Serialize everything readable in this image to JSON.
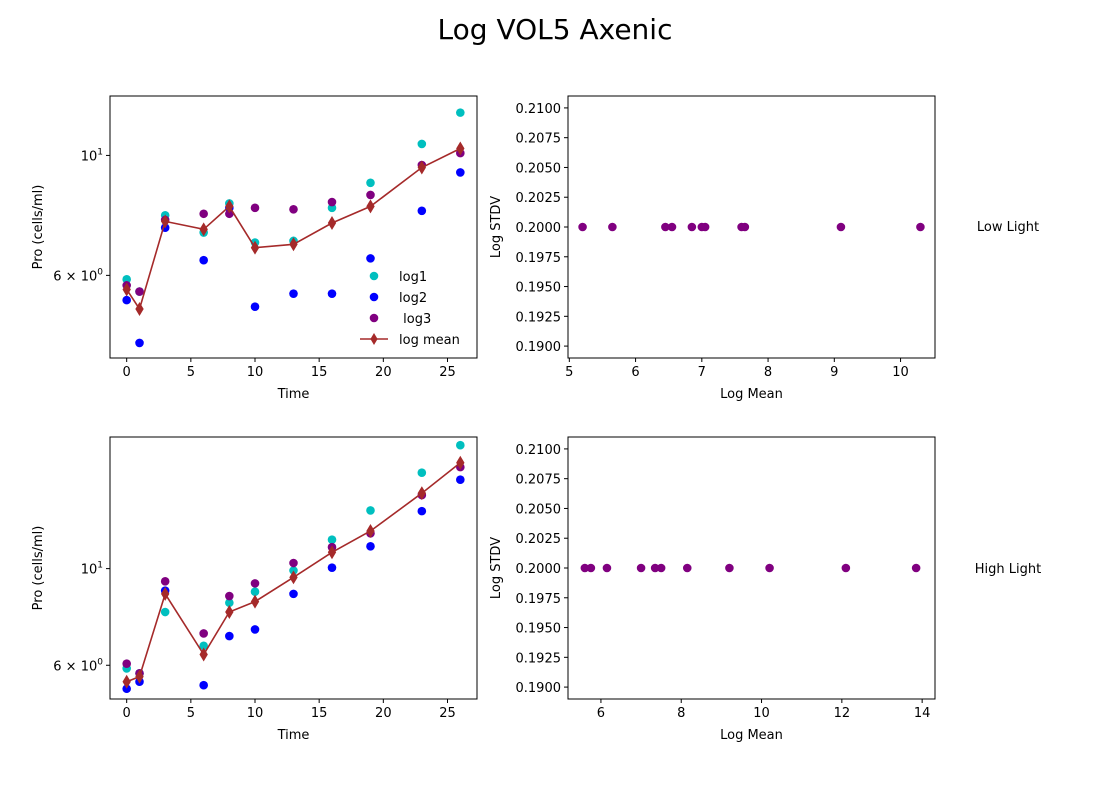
{
  "title": "Log VOL5 Axenic",
  "colors": {
    "log1": "#00bfbf",
    "log2": "#0000ff",
    "log3": "#800080",
    "mean": "#a52a2a"
  },
  "chart_data": [
    {
      "type": "scatter",
      "xlabel": "Time",
      "ylabel": "Pro (cells/ml)",
      "yscale": "log",
      "xlim": [
        -1.3,
        27.3
      ],
      "ylim": [
        4.22,
        12.88
      ],
      "xticks": [
        0,
        5,
        10,
        15,
        20,
        25
      ],
      "yticks": [
        {
          "value": 6,
          "label": "6 × 10^0",
          "base": "6 × 10",
          "exp": "0"
        },
        {
          "value": 10,
          "label": "10^1",
          "base": "10",
          "exp": "1"
        }
      ],
      "legend": {
        "placement": "lower-right",
        "entries": [
          "log1",
          "log2",
          " log3",
          "log mean"
        ]
      },
      "x": [
        0,
        1,
        3,
        6,
        8,
        10,
        13,
        16,
        19,
        23,
        26
      ],
      "series": [
        {
          "name": "log1",
          "marker": "circle",
          "color": "#00bfbf",
          "values": [
            5.9,
            5.6,
            7.75,
            7.2,
            8.15,
            6.9,
            6.95,
            8.0,
            8.9,
            10.5,
            12.0
          ]
        },
        {
          "name": "log2",
          "marker": "circle",
          "color": "#0000ff",
          "values": [
            5.4,
            4.5,
            7.35,
            6.4,
            8.0,
            5.25,
            5.55,
            5.55,
            6.45,
            7.9,
            9.3
          ]
        },
        {
          "name": " log3",
          "marker": "circle",
          "color": "#800080",
          "values": [
            5.75,
            5.6,
            7.6,
            7.8,
            7.8,
            8.0,
            7.95,
            8.2,
            8.45,
            9.6,
            10.1
          ]
        },
        {
          "name": "log mean",
          "marker": "thin_diamond",
          "line": true,
          "color": "#a52a2a",
          "values": [
            5.65,
            5.2,
            7.55,
            7.3,
            8.05,
            6.75,
            6.85,
            7.5,
            8.05,
            9.5,
            10.3
          ]
        }
      ]
    },
    {
      "type": "scatter",
      "xlabel": "Log Mean",
      "ylabel": "Log STDV",
      "xlim": [
        4.98,
        10.52
      ],
      "ylim": [
        0.189,
        0.211
      ],
      "xticks": [
        5,
        6,
        7,
        8,
        9,
        10
      ],
      "yticks": [
        0.19,
        0.1925,
        0.195,
        0.1975,
        0.2,
        0.2025,
        0.205,
        0.2075,
        0.21
      ],
      "series": [
        {
          "color": "#800080",
          "x": [
            5.2,
            5.65,
            6.45,
            6.55,
            6.85,
            7.0,
            7.05,
            7.6,
            7.65,
            9.1,
            10.3
          ],
          "y": [
            0.2,
            0.2,
            0.2,
            0.2,
            0.2,
            0.2,
            0.2,
            0.2,
            0.2,
            0.2,
            0.2
          ]
        }
      ],
      "side_label": "Low Light"
    },
    {
      "type": "scatter",
      "xlabel": "Time",
      "ylabel": "Pro (cells/ml)",
      "yscale": "log",
      "xlim": [
        -1.3,
        27.3
      ],
      "ylim": [
        5.02,
        20.05
      ],
      "xticks": [
        0,
        5,
        10,
        15,
        20,
        25
      ],
      "yticks": [
        {
          "value": 6,
          "label": "6 × 10^0",
          "base": "6 × 10",
          "exp": "0"
        },
        {
          "value": 10,
          "label": "10^1",
          "base": "10",
          "exp": "1"
        }
      ],
      "x": [
        0,
        1,
        3,
        6,
        8,
        10,
        13,
        16,
        19,
        23,
        26
      ],
      "series": [
        {
          "name": "log1",
          "marker": "circle",
          "color": "#00bfbf",
          "values": [
            5.9,
            5.75,
            7.95,
            6.65,
            8.35,
            8.85,
            9.9,
            11.65,
            13.6,
            16.6,
            19.2
          ]
        },
        {
          "name": "log2",
          "marker": "circle",
          "color": "#0000ff",
          "values": [
            5.3,
            5.5,
            8.9,
            5.4,
            7.0,
            7.25,
            8.75,
            10.05,
            11.25,
            13.55,
            16.0
          ]
        },
        {
          "name": " log3",
          "marker": "circle",
          "color": "#800080",
          "values": [
            6.05,
            5.75,
            9.35,
            7.1,
            8.65,
            9.25,
            10.3,
            11.2,
            12.05,
            14.75,
            17.1
          ]
        },
        {
          "name": "log mean",
          "marker": "thin_diamond",
          "line": true,
          "color": "#a52a2a",
          "values": [
            5.5,
            5.65,
            8.75,
            6.35,
            7.95,
            8.4,
            9.55,
            10.9,
            12.2,
            14.9,
            17.5
          ]
        }
      ]
    },
    {
      "type": "scatter",
      "xlabel": "Log Mean",
      "ylabel": "Log STDV",
      "xlim": [
        5.18,
        14.32
      ],
      "ylim": [
        0.189,
        0.211
      ],
      "xticks": [
        6,
        8,
        10,
        12,
        14
      ],
      "yticks": [
        0.19,
        0.1925,
        0.195,
        0.1975,
        0.2,
        0.2025,
        0.205,
        0.2075,
        0.21
      ],
      "series": [
        {
          "color": "#800080",
          "x": [
            5.6,
            5.75,
            6.15,
            7.0,
            7.35,
            7.5,
            8.15,
            9.2,
            10.2,
            12.1,
            13.85
          ],
          "y": [
            0.2,
            0.2,
            0.2,
            0.2,
            0.2,
            0.2,
            0.2,
            0.2,
            0.2,
            0.2,
            0.2
          ]
        }
      ],
      "side_label": "High Light"
    }
  ]
}
